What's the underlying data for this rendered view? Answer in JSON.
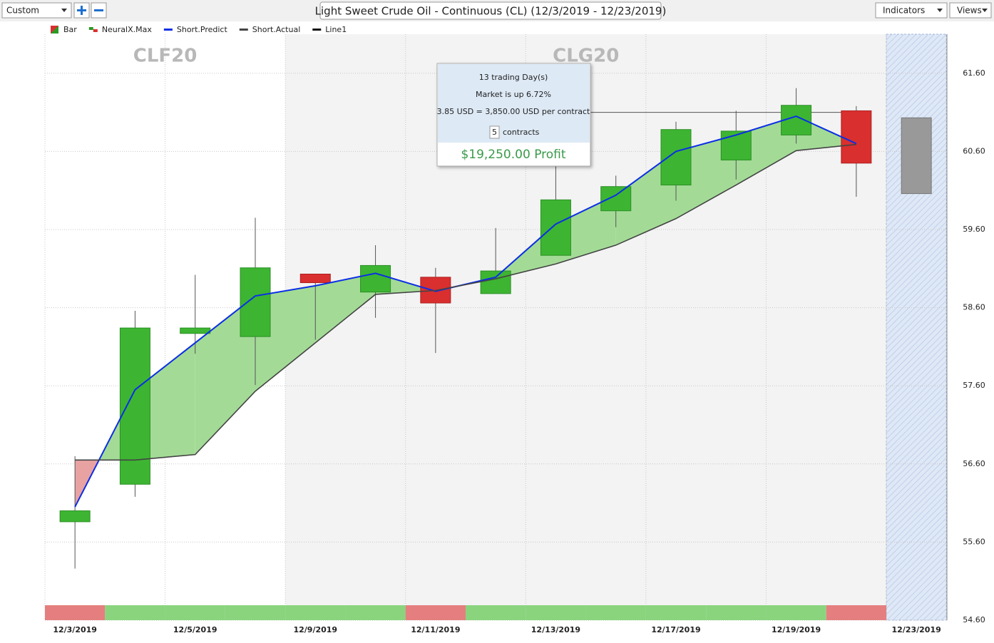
{
  "toolbar": {
    "preset": "Custom",
    "title": "Light Sweet Crude Oil - Continuous (CL) (12/3/2019 - 12/23/2019)",
    "indicators": "Indicators",
    "views": "Views"
  },
  "chart_data": {
    "type": "candlestick",
    "legend": [
      "Bar",
      "NeuralX.Max",
      "Short.Predict",
      "Short.Actual",
      "Line1"
    ],
    "contracts": [
      "CLF20",
      "CLG20"
    ],
    "categories": [
      "12/3/2019",
      null,
      "12/5/2019",
      null,
      "12/9/2019",
      null,
      "12/11/2019",
      null,
      "12/13/2019",
      null,
      "12/17/2019",
      null,
      "12/19/2019",
      null,
      "12/23/2019"
    ],
    "open": [
      55.86,
      56.34,
      58.27,
      58.23,
      59.03,
      58.8,
      58.99,
      58.78,
      59.27,
      59.84,
      60.17,
      60.49,
      60.81,
      61.12,
      null
    ],
    "high": [
      56.7,
      58.56,
      59.02,
      59.75,
      59.03,
      59.4,
      59.11,
      59.62,
      60.45,
      60.29,
      60.98,
      61.12,
      61.41,
      61.18,
      null
    ],
    "low": [
      55.26,
      56.18,
      58.01,
      57.61,
      58.19,
      58.47,
      58.02,
      58.78,
      59.27,
      59.63,
      59.97,
      60.24,
      60.7,
      60.02,
      null
    ],
    "close": [
      56.0,
      58.34,
      58.34,
      59.11,
      58.92,
      59.14,
      58.66,
      59.07,
      59.98,
      60.15,
      60.88,
      60.86,
      61.19,
      60.45,
      null
    ],
    "up_color": "#3db532",
    "down_color": "#d92f2f",
    "series": [
      {
        "name": "Short.Predict",
        "color": "#0b2ee6",
        "values": [
          56.05,
          57.55,
          58.15,
          58.75,
          58.88,
          59.04,
          58.81,
          58.99,
          59.67,
          60.04,
          60.6,
          60.81,
          61.05,
          60.7,
          null
        ]
      },
      {
        "name": "Short.Actual",
        "color": "#444444",
        "values": [
          56.65,
          56.65,
          56.72,
          57.53,
          58.15,
          58.77,
          58.82,
          58.97,
          59.16,
          59.4,
          59.74,
          60.17,
          60.61,
          60.69,
          null
        ]
      }
    ],
    "fill_up": "#a3db96",
    "fill_down": "#e9a2a2",
    "line1": 61.1,
    "line1_color": "#555555",
    "forecast": {
      "high": 61.03,
      "low": 60.06,
      "color": "#999999"
    },
    "strip_colors": [
      "#e57f7f",
      "#8ad47e",
      "#8ad47e",
      "#8ad47e",
      "#8ad47e",
      "#8ad47e",
      "#e57f7f",
      "#8ad47e",
      "#8ad47e",
      "#8ad47e",
      "#8ad47e",
      "#8ad47e",
      "#8ad47e",
      "#e57f7f"
    ],
    "ylim": [
      54.6,
      62.1
    ],
    "yticks": [
      {
        "value": 54.6,
        "label": "54.60"
      },
      {
        "value": 55.6,
        "label": "55.60"
      },
      {
        "value": 56.6,
        "label": "56.60"
      },
      {
        "value": 57.6,
        "label": "57.60"
      },
      {
        "value": 58.6,
        "label": "58.60"
      },
      {
        "value": 59.6,
        "label": "59.60"
      },
      {
        "value": 60.6,
        "label": "60.60"
      },
      {
        "value": 61.6,
        "label": "61.60"
      }
    ],
    "grid": true
  },
  "tooltip": {
    "days": "13 trading Day(s)",
    "market": "Market is up 6.72%",
    "per_contract": "3.85 USD = 3,850.00 USD per contract",
    "contracts": "5",
    "contracts_label": "contracts",
    "profit": "$19,250.00 Profit"
  }
}
